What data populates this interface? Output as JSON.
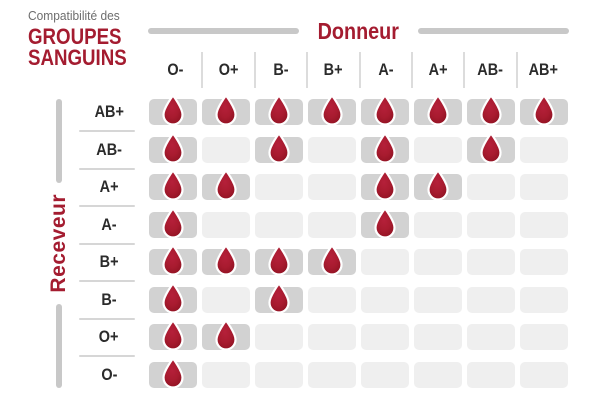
{
  "colors": {
    "red": "#a41c30",
    "gray_text": "#6d6d6d",
    "dark_text": "#2b2b2b",
    "cell_filled": "#d2d2d2",
    "cell_empty": "#efefef",
    "bar": "#c8c8c8",
    "divider": "#dcdcdc",
    "separator": "#d6d6d6",
    "drop_main": "#a81b2f",
    "drop_dark": "#8f1222",
    "drop_light": "#b5203a"
  },
  "brand": {
    "line1": "Compatibilité des",
    "line2": "GROUPES",
    "line3": "SANGUINS"
  },
  "axis_titles": {
    "donor": "Donneur",
    "receiver": "Receveur"
  },
  "icons": {
    "compatible_marker": "blood-drop-icon"
  },
  "chart_data": {
    "type": "heatmap",
    "title": "Compatibilité des GROUPES SANGUINS",
    "x_axis_label": "Donneur",
    "y_axis_label": "Receveur",
    "columns": [
      "O-",
      "O+",
      "B-",
      "B+",
      "A-",
      "A+",
      "AB-",
      "AB+"
    ],
    "rows": [
      "AB+",
      "AB-",
      "A+",
      "A-",
      "B+",
      "B-",
      "O+",
      "O-"
    ],
    "value_encoding": "1 = blood drop shown (compatible), 0 = empty cell",
    "matrix": [
      [
        1,
        1,
        1,
        1,
        1,
        1,
        1,
        1
      ],
      [
        1,
        0,
        1,
        0,
        1,
        0,
        1,
        0
      ],
      [
        1,
        1,
        0,
        0,
        1,
        1,
        0,
        0
      ],
      [
        1,
        0,
        0,
        0,
        1,
        0,
        0,
        0
      ],
      [
        1,
        1,
        1,
        1,
        0,
        0,
        0,
        0
      ],
      [
        1,
        0,
        1,
        0,
        0,
        0,
        0,
        0
      ],
      [
        1,
        1,
        0,
        0,
        0,
        0,
        0,
        0
      ],
      [
        1,
        0,
        0,
        0,
        0,
        0,
        0,
        0
      ]
    ]
  }
}
